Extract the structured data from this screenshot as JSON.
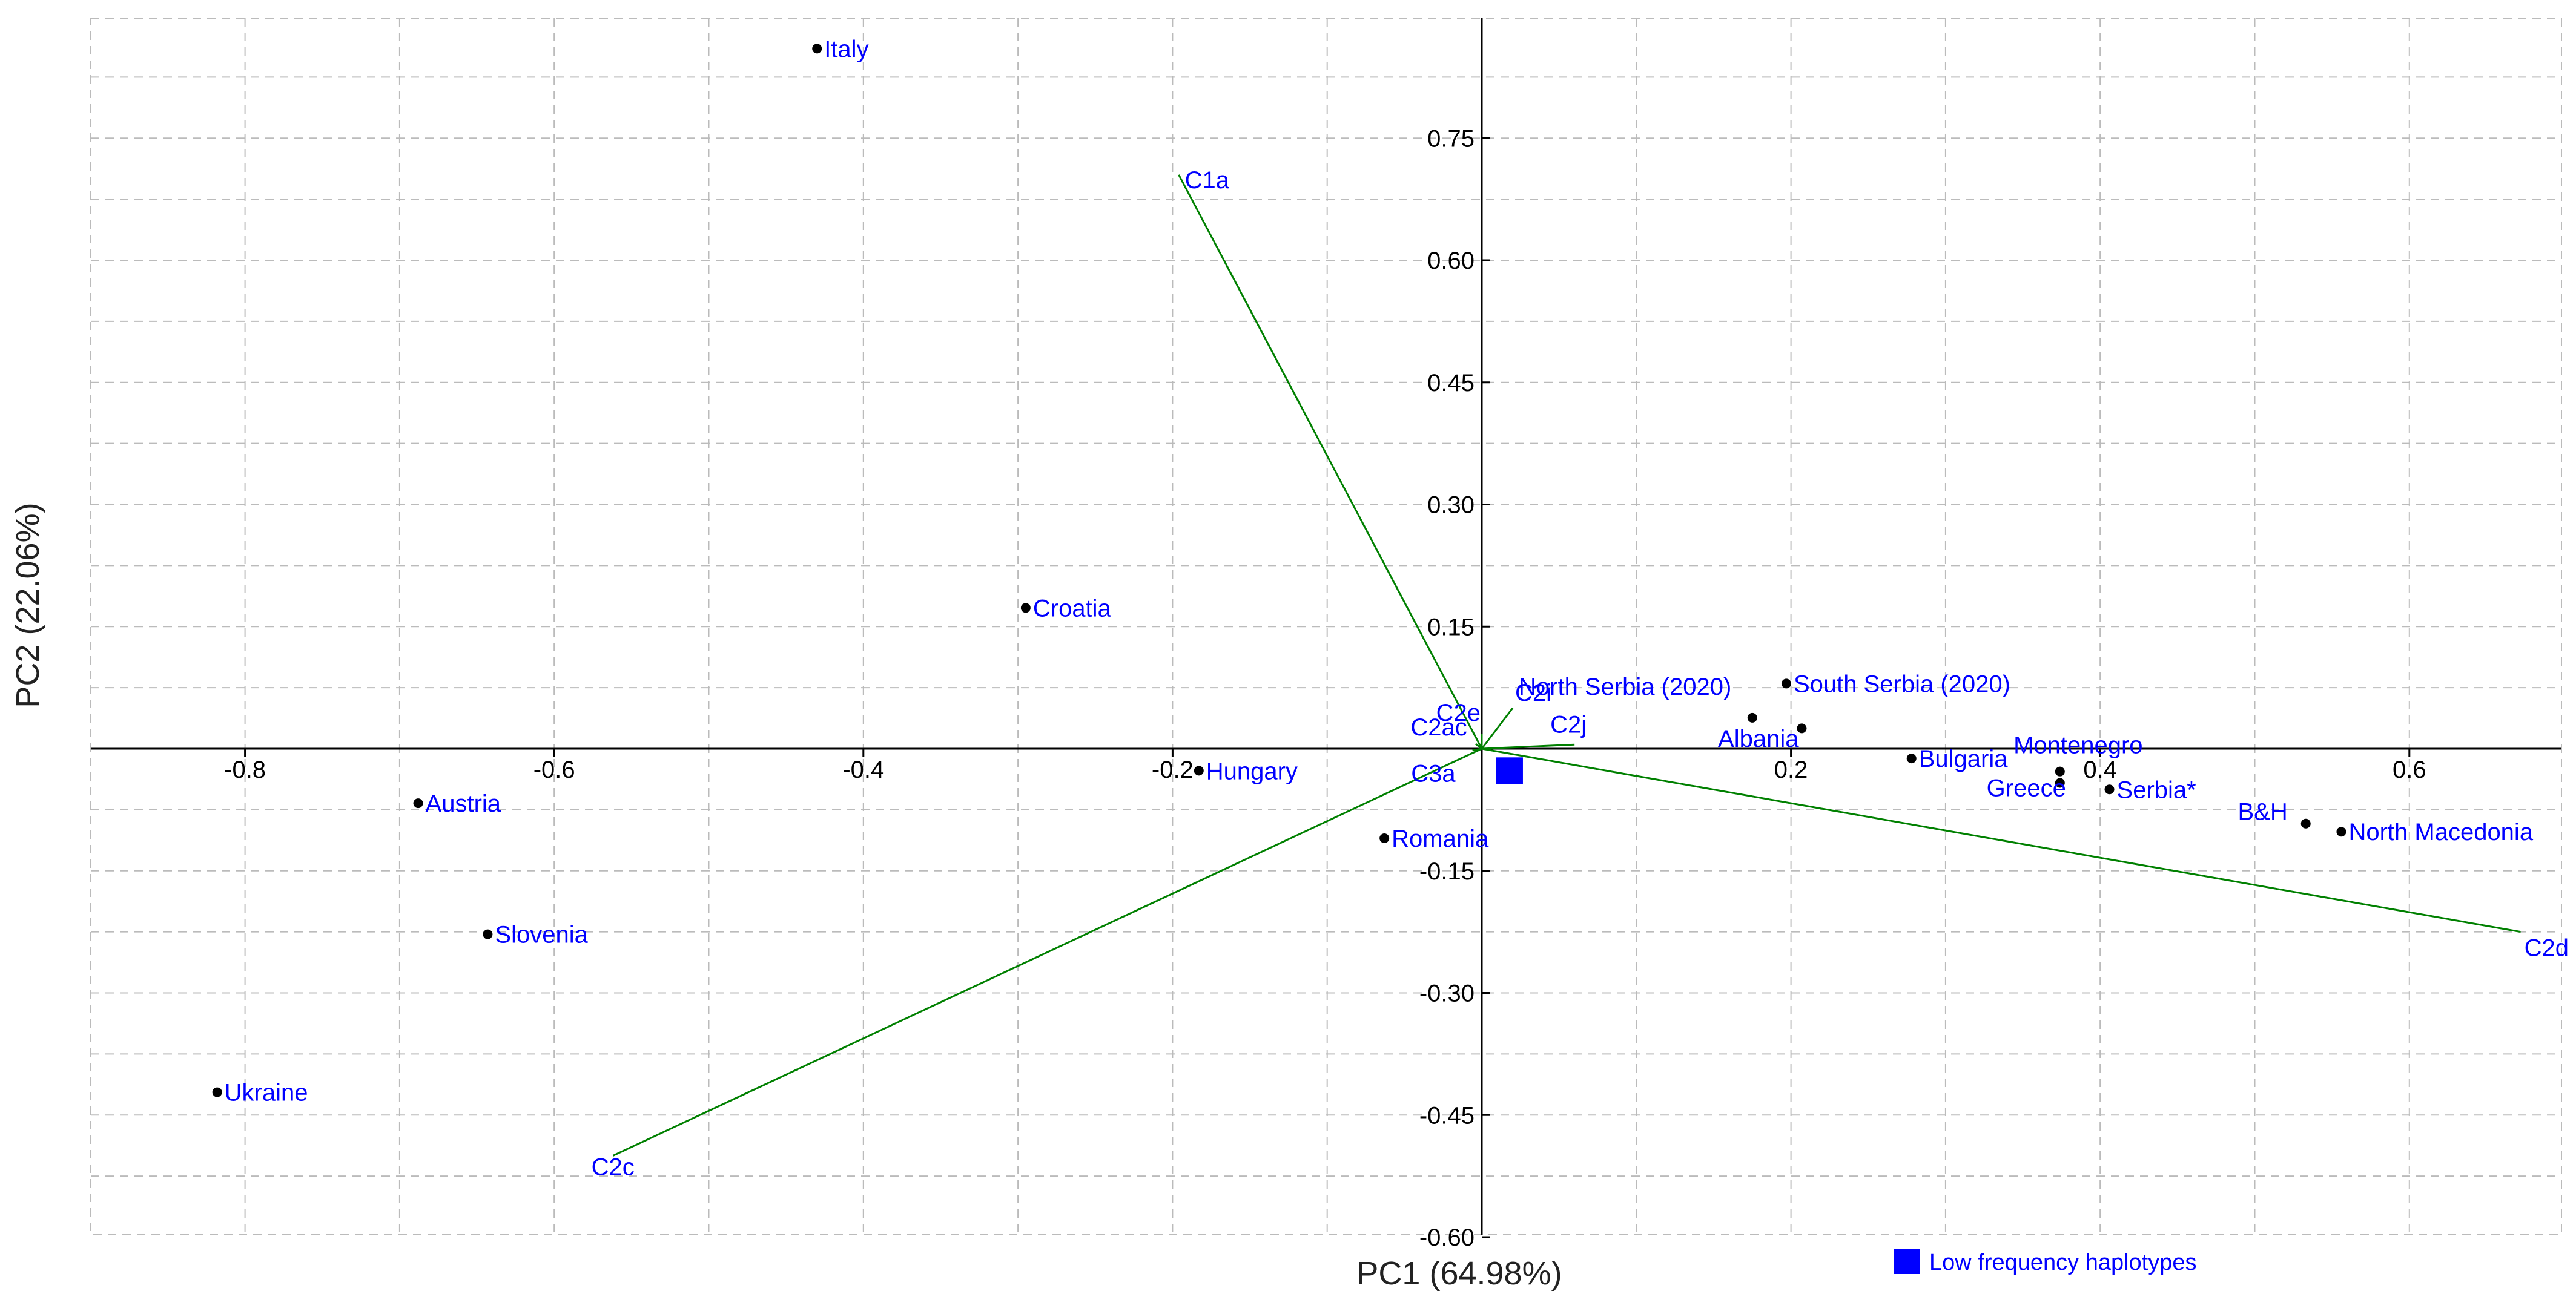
{
  "chart_data": {
    "type": "scatter",
    "xlabel": "PC1 (64.98%)",
    "ylabel": "PC2 (22.06%)",
    "xlim": [
      -0.9,
      0.7
    ],
    "ylim": [
      -0.6,
      0.9
    ],
    "x_ticks": [
      -0.8,
      -0.6,
      -0.4,
      -0.2,
      0.2,
      0.4,
      0.6
    ],
    "y_ticks": [
      0.75,
      0.6,
      0.45,
      0.3,
      0.15,
      -0.15,
      -0.3,
      -0.45,
      -0.6
    ],
    "x_tick_labels": [
      "-0.8",
      "-0.6",
      "-0.4",
      "-0.2",
      "0.2",
      "0.4",
      "0.6"
    ],
    "y_tick_labels": [
      "0.75",
      "0.60",
      "0.45",
      "0.30",
      "0.15",
      "-0.15",
      "-0.30",
      "-0.45",
      "-0.60"
    ],
    "grid": true,
    "point_color": "#000000",
    "label_color": "#0000ff",
    "vector_color": "#008000",
    "points": [
      {
        "label": "Italy",
        "x": -0.43,
        "y": 0.86,
        "anchor": "right"
      },
      {
        "label": "Croatia",
        "x": -0.295,
        "y": 0.173,
        "anchor": "right"
      },
      {
        "label": "Hungary",
        "x": -0.183,
        "y": -0.027,
        "anchor": "right"
      },
      {
        "label": "Austria",
        "x": -0.688,
        "y": -0.067,
        "anchor": "right"
      },
      {
        "label": "Slovenia",
        "x": -0.643,
        "y": -0.228,
        "anchor": "right"
      },
      {
        "label": "Ukraine",
        "x": -0.818,
        "y": -0.422,
        "anchor": "right"
      },
      {
        "label": "Romania",
        "x": -0.063,
        "y": -0.11,
        "anchor": "right"
      },
      {
        "label": "North Serbia (2020)",
        "x": 0.002,
        "y": 0.002,
        "anchor": "none"
      },
      {
        "label": "South Serbia (2020)",
        "x": 0.197,
        "y": 0.08,
        "anchor": "right"
      },
      {
        "label": "Albania",
        "x": 0.175,
        "y": 0.038,
        "anchor": "below-left"
      },
      {
        "label": "",
        "x": 0.207,
        "y": 0.025,
        "anchor": "none"
      },
      {
        "label": "Bulgaria",
        "x": 0.278,
        "y": -0.012,
        "anchor": "right"
      },
      {
        "label": "Montenegro",
        "x": 0.374,
        "y": -0.028,
        "anchor": "above"
      },
      {
        "label": "Greece",
        "x": 0.374,
        "y": -0.042,
        "anchor": "left"
      },
      {
        "label": "Serbia*",
        "x": 0.406,
        "y": -0.05,
        "anchor": "right"
      },
      {
        "label": "B&H",
        "x": 0.533,
        "y": -0.092,
        "anchor": "above-left"
      },
      {
        "label": "North Macedonia",
        "x": 0.556,
        "y": -0.102,
        "anchor": "right"
      }
    ],
    "vectors": [
      {
        "label": "C1a",
        "x": -0.196,
        "y": 0.705
      },
      {
        "label": "C2c",
        "x": -0.562,
        "y": -0.5
      },
      {
        "label": "C2d",
        "x": 0.672,
        "y": -0.225
      },
      {
        "label": "C2e",
        "x": 0.0,
        "y": 0.018
      },
      {
        "label": "C2i",
        "x": 0.02,
        "y": 0.05
      },
      {
        "label": "C2j",
        "x": 0.06,
        "y": 0.005
      },
      {
        "label": "C2ac",
        "x": -0.004,
        "y": 0.006
      },
      {
        "label": "C3a",
        "x": -0.006,
        "y": -0.002
      }
    ],
    "low_frequency_marker": {
      "x": 0.018,
      "y": -0.027,
      "color": "#0000ff"
    },
    "legend": {
      "label": "Low frequency haplotypes",
      "color": "#0000ff",
      "position": "bottom-center"
    }
  }
}
